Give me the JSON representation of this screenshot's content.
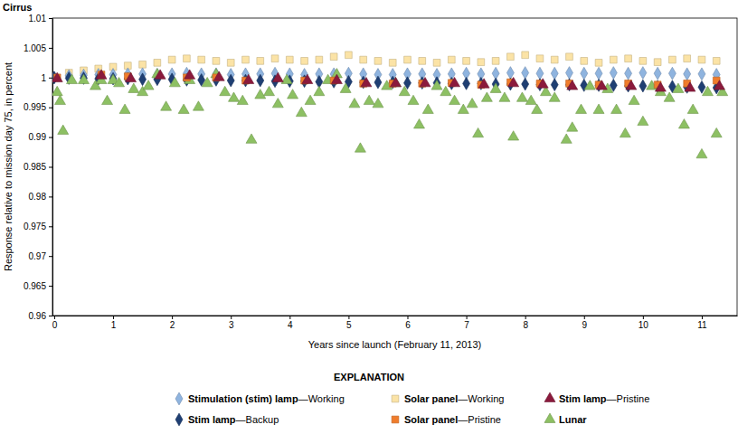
{
  "chart_data": {
    "type": "scatter",
    "title": "Cirrus",
    "x_label": "Years since launch (February 11, 2013)",
    "y_label": "Response relative to mission day 75, in percent",
    "legend_title": "EXPLANATION",
    "legend": "bottom",
    "grid": false,
    "xlim": [
      -0.03,
      11.6
    ],
    "xticks": [
      0,
      1,
      2,
      3,
      4,
      5,
      6,
      7,
      8,
      9,
      10,
      11
    ],
    "ylim": [
      0.96,
      1.01
    ],
    "yticks": [
      0.96,
      0.965,
      0.97,
      0.975,
      0.98,
      0.985,
      0.99,
      0.995,
      1,
      1.005,
      1.01
    ],
    "series": [
      {
        "name": "Solar panel—Working",
        "color": "#fbe3a6",
        "marker": "square",
        "x": [
          0,
          0.25,
          0.5,
          0.75,
          1,
          1.25,
          1.5,
          1.75,
          2,
          2.25,
          2.5,
          2.75,
          3,
          3.25,
          3.5,
          3.75,
          4,
          4.25,
          4.5,
          4.75,
          5,
          5.25,
          5.5,
          5.75,
          6,
          6.25,
          6.5,
          6.75,
          7,
          7.25,
          7.5,
          7.75,
          8,
          8.25,
          8.5,
          8.75,
          9,
          9.25,
          9.5,
          9.75,
          10,
          10.25,
          10.5,
          10.75,
          11,
          11.25
        ],
        "values": [
          1.0,
          1.0008,
          1.0012,
          1.0015,
          1.0018,
          1.002,
          1.0022,
          1.0025,
          1.003,
          1.0032,
          1.003,
          1.0028,
          1.0025,
          1.003,
          1.0028,
          1.0032,
          1.003,
          1.0028,
          1.003,
          1.0035,
          1.0038,
          1.003,
          1.0028,
          1.0025,
          1.003,
          1.0028,
          1.0025,
          1.003,
          1.0028,
          1.0026,
          1.0028,
          1.0035,
          1.0038,
          1.0032,
          1.003,
          1.0035,
          1.0028,
          1.0025,
          1.003,
          1.0032,
          1.0028,
          1.0026,
          1.003,
          1.0032,
          1.003,
          1.0028
        ]
      },
      {
        "name": "Stimulation (stim) lamp—Working",
        "color": "#8fb4df",
        "marker": "diamond",
        "x": [
          0,
          0.25,
          0.5,
          0.75,
          1,
          1.25,
          1.5,
          1.75,
          2,
          2.25,
          2.5,
          2.75,
          3,
          3.25,
          3.5,
          3.75,
          4,
          4.25,
          4.5,
          4.75,
          5,
          5.25,
          5.5,
          5.75,
          6,
          6.25,
          6.5,
          6.75,
          7,
          7.25,
          7.5,
          7.75,
          8,
          8.25,
          8.5,
          8.75,
          9,
          9.25,
          9.5,
          9.75,
          10,
          10.25,
          10.5,
          10.75,
          11,
          11.25
        ],
        "values": [
          1.0,
          1.0003,
          1.0004,
          1.0005,
          1.0005,
          1.0006,
          1.0006,
          1.0005,
          1.0006,
          1.0007,
          1.0006,
          1.0006,
          1.0005,
          1.0006,
          1.0006,
          1.0007,
          1.0006,
          1.0005,
          1.0006,
          1.0006,
          1.0007,
          1.0006,
          1.0005,
          1.0005,
          1.0006,
          1.0006,
          1.0005,
          1.0006,
          1.0007,
          1.0006,
          1.0007,
          1.0008,
          1.0008,
          1.0007,
          1.0007,
          1.0008,
          1.0007,
          1.0007,
          1.0008,
          1.0007,
          1.0008,
          1.0007,
          1.0007,
          1.0006,
          1.0006,
          1.0005
        ]
      },
      {
        "name": "Stim lamp—Backup",
        "color": "#1f3f73",
        "marker": "diamond",
        "x": [
          0,
          0.25,
          0.5,
          0.75,
          1,
          1.25,
          1.5,
          1.75,
          2,
          2.25,
          2.5,
          2.75,
          3,
          3.25,
          3.5,
          3.75,
          4,
          4.25,
          4.5,
          4.75,
          5,
          5.25,
          5.5,
          5.75,
          6,
          6.25,
          6.5,
          6.75,
          7,
          7.25,
          7.5,
          7.75,
          8,
          8.25,
          8.5,
          8.75,
          9,
          9.25,
          9.5,
          9.75,
          10,
          10.25,
          10.5,
          10.75,
          11,
          11.25
        ],
        "values": [
          1.0,
          0.9999,
          0.9999,
          0.9998,
          0.9998,
          0.9998,
          0.9997,
          0.9997,
          0.9997,
          0.9996,
          0.9996,
          0.9996,
          0.9995,
          0.9995,
          0.9995,
          0.9994,
          0.9994,
          0.9994,
          0.9993,
          0.9993,
          0.9993,
          0.9992,
          0.9992,
          0.9992,
          0.9991,
          0.9991,
          0.9991,
          0.999,
          0.999,
          0.999,
          0.9989,
          0.9989,
          0.9989,
          0.9988,
          0.9988,
          0.9988,
          0.9987,
          0.9987,
          0.9987,
          0.9986,
          0.9986,
          0.9985,
          0.9985,
          0.9984,
          0.9984,
          0.9983
        ]
      },
      {
        "name": "Lunar",
        "color": "#8dc063",
        "marker": "triangle",
        "x": [
          0.05,
          0.1,
          0.15,
          0.3,
          0.5,
          0.7,
          0.8,
          0.9,
          1.0,
          1.1,
          1.2,
          1.35,
          1.5,
          1.6,
          1.75,
          1.9,
          2.05,
          2.2,
          2.3,
          2.45,
          2.6,
          2.75,
          2.9,
          3.05,
          3.2,
          3.35,
          3.5,
          3.65,
          3.8,
          3.95,
          4.05,
          4.2,
          4.35,
          4.5,
          4.65,
          4.8,
          4.95,
          5.1,
          5.2,
          5.35,
          5.5,
          5.65,
          5.8,
          5.95,
          6.1,
          6.2,
          6.35,
          6.5,
          6.65,
          6.8,
          6.95,
          7.1,
          7.2,
          7.35,
          7.5,
          7.65,
          7.8,
          7.95,
          8.1,
          8.2,
          8.35,
          8.5,
          8.7,
          8.8,
          8.95,
          9.1,
          9.25,
          9.4,
          9.55,
          9.7,
          9.85,
          10.0,
          10.15,
          10.3,
          10.45,
          10.6,
          10.7,
          10.85,
          11.0,
          11.1,
          11.25,
          11.35
        ],
        "values": [
          0.9975,
          0.996,
          0.991,
          0.9995,
          0.9995,
          0.9985,
          0.9995,
          0.996,
          0.9995,
          0.999,
          0.9945,
          0.998,
          0.9975,
          0.9985,
          1.0005,
          0.995,
          0.999,
          0.9945,
          0.9995,
          0.995,
          0.999,
          1.0005,
          0.9975,
          0.9965,
          0.996,
          0.9895,
          0.997,
          0.9975,
          0.9955,
          0.9995,
          0.997,
          0.994,
          0.996,
          0.9975,
          0.9995,
          1.0005,
          0.998,
          0.9955,
          0.988,
          0.996,
          0.9955,
          0.9985,
          0.999,
          0.9975,
          0.996,
          0.992,
          0.9945,
          0.9985,
          0.9975,
          0.996,
          0.9945,
          0.9955,
          0.9905,
          0.9965,
          0.998,
          0.9965,
          0.99,
          0.9965,
          0.996,
          0.9945,
          0.9975,
          0.9965,
          0.9895,
          0.9915,
          0.9945,
          0.9985,
          0.9945,
          0.998,
          0.9945,
          0.9905,
          0.996,
          0.9925,
          0.9985,
          0.9975,
          0.9965,
          0.998,
          0.992,
          0.9945,
          0.987,
          0.9975,
          0.9905,
          0.9975
        ]
      },
      {
        "name": "Solar panel—Pristine",
        "color": "#f07c2c",
        "marker": "square",
        "x": [
          0.05,
          0.8,
          1.25,
          2.25,
          2.75,
          3.25,
          4.25,
          4.75,
          5.25,
          5.75,
          6.25,
          6.75,
          7.25,
          7.75,
          8.25,
          8.75,
          9.25,
          9.75,
          10.25,
          10.75,
          11.25
        ],
        "values": [
          1.0,
          1.0005,
          1.0002,
          1.0,
          1.0,
          0.9995,
          0.9995,
          0.9995,
          0.999,
          0.999,
          0.999,
          0.9991,
          0.9988,
          0.9992,
          0.999,
          0.999,
          0.9988,
          0.999,
          0.9988,
          0.999,
          0.9995
        ]
      },
      {
        "name": "Stim lamp—Pristine",
        "color": "#8b1a3c",
        "marker": "triangle",
        "x": [
          0.05,
          0.8,
          1.3,
          1.8,
          2.3,
          2.8,
          3.3,
          3.8,
          4.3,
          4.8,
          5.3,
          5.8,
          6.3,
          6.8,
          7.3,
          7.8,
          8.3,
          8.8,
          9.3,
          9.8,
          10.3,
          10.8,
          11.3
        ],
        "values": [
          0.9998,
          1.0003,
          0.9998,
          1.0003,
          1.0003,
          1.0,
          0.9995,
          0.9998,
          0.9995,
          0.9995,
          0.999,
          0.999,
          0.999,
          0.999,
          0.9988,
          0.999,
          0.9988,
          0.9985,
          0.9985,
          0.9985,
          0.9982,
          0.9982,
          0.9985
        ]
      }
    ]
  }
}
